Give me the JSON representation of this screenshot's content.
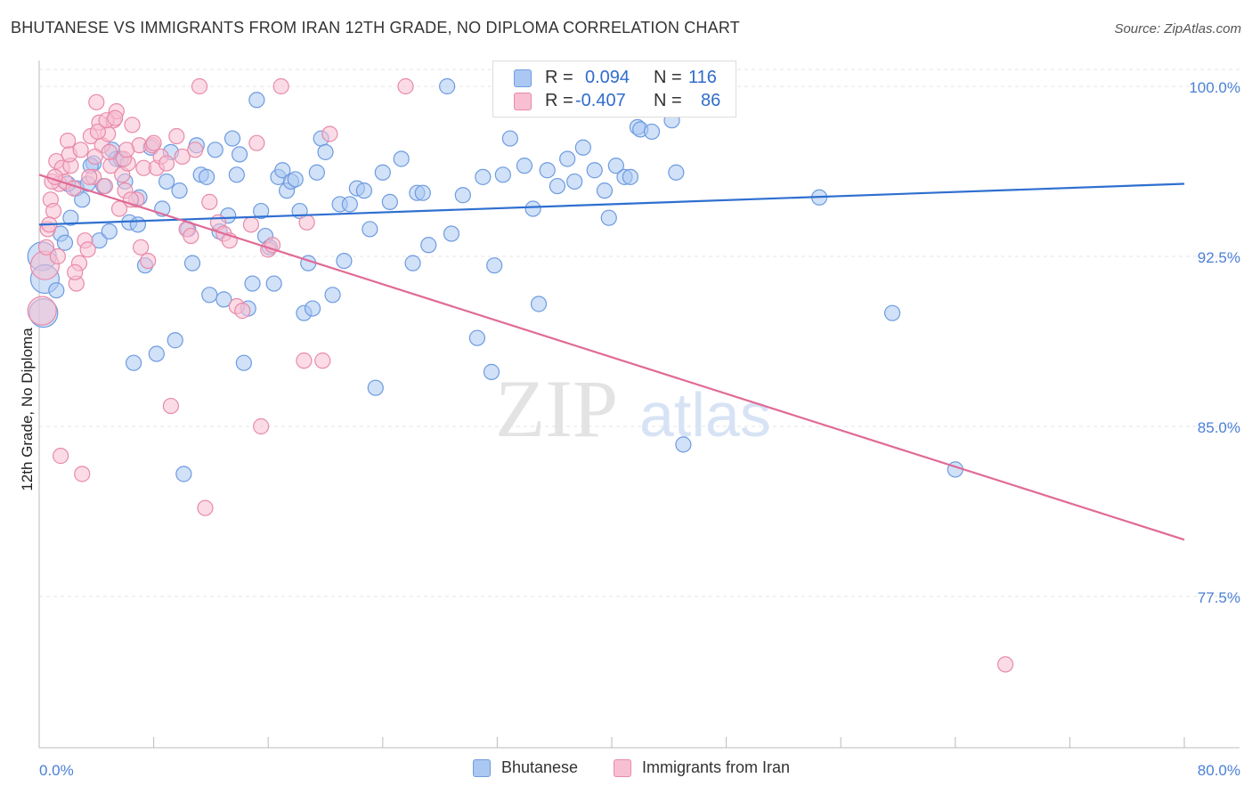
{
  "title": "BHUTANESE VS IMMIGRANTS FROM IRAN 12TH GRADE, NO DIPLOMA CORRELATION CHART",
  "source": "Source: ZipAtlas.com",
  "watermark": {
    "zip": "ZIP",
    "atlas": "atlas"
  },
  "legend": {
    "r_label": "R =",
    "n_label": "N =",
    "rows": [
      {
        "name": "Bhutanese",
        "r": "0.094",
        "n": "116",
        "fill": "#aac8f2",
        "stroke": "#6e9be0",
        "value_color": "#2f6ccc"
      },
      {
        "name": "Immigrants from Iran",
        "r": "-0.407",
        "n": "86",
        "fill": "#f8bfd2",
        "stroke": "#e88aa9",
        "value_color": "#2f6ccc"
      }
    ]
  },
  "chart_data": {
    "type": "scatter",
    "title": "BHUTANESE VS IMMIGRANTS FROM IRAN 12TH GRADE, NO DIPLOMA CORRELATION CHART",
    "xlabel": "",
    "ylabel": "12th Grade, No Diploma",
    "xlim": [
      0,
      80
    ],
    "ylim": [
      70,
      101
    ],
    "y_tick_labels": [
      "100.0%",
      "92.5%",
      "85.0%",
      "77.5%"
    ],
    "y_ticks": [
      100,
      92.5,
      85,
      77.5
    ],
    "x_tick_labels": [
      "0.0%",
      "80.0%"
    ],
    "grid": true,
    "legend_position": "top-center",
    "series": [
      {
        "name": "Bhutanese",
        "color": "#6e9be0",
        "fill": "#aac8f2",
        "trend": {
          "x": [
            0,
            80
          ],
          "y": [
            93.9,
            95.7
          ],
          "color": "#2e6fd0"
        },
        "points": [
          [
            0.2,
            92.5
          ],
          [
            0.4,
            91.5
          ],
          [
            0.3,
            90.0
          ],
          [
            1.2,
            91.0
          ],
          [
            1.5,
            93.5
          ],
          [
            1.8,
            93.1
          ],
          [
            2.2,
            94.2
          ],
          [
            2.6,
            95.5
          ],
          [
            3.0,
            95.0
          ],
          [
            3.4,
            95.7
          ],
          [
            3.8,
            96.6
          ],
          [
            4.2,
            93.2
          ],
          [
            4.5,
            95.6
          ],
          [
            4.9,
            93.6
          ],
          [
            5.1,
            97.2
          ],
          [
            5.4,
            96.8
          ],
          [
            5.7,
            96.8
          ],
          [
            6.0,
            95.8
          ],
          [
            6.3,
            94.0
          ],
          [
            6.6,
            87.8
          ],
          [
            7.0,
            95.1
          ],
          [
            7.4,
            92.1
          ],
          [
            7.8,
            97.3
          ],
          [
            8.2,
            88.2
          ],
          [
            8.6,
            94.6
          ],
          [
            8.9,
            95.8
          ],
          [
            9.2,
            97.1
          ],
          [
            9.5,
            88.8
          ],
          [
            9.8,
            95.4
          ],
          [
            10.1,
            82.9
          ],
          [
            10.4,
            93.7
          ],
          [
            10.7,
            92.2
          ],
          [
            11.0,
            97.4
          ],
          [
            11.3,
            96.1
          ],
          [
            11.7,
            96.0
          ],
          [
            11.9,
            90.8
          ],
          [
            12.3,
            97.2
          ],
          [
            12.6,
            93.6
          ],
          [
            12.9,
            90.6
          ],
          [
            13.2,
            94.3
          ],
          [
            13.5,
            97.7
          ],
          [
            13.8,
            96.1
          ],
          [
            14.0,
            97.0
          ],
          [
            14.3,
            87.8
          ],
          [
            14.6,
            90.2
          ],
          [
            14.9,
            91.3
          ],
          [
            15.2,
            99.4
          ],
          [
            15.5,
            94.5
          ],
          [
            15.8,
            93.4
          ],
          [
            16.1,
            92.9
          ],
          [
            16.4,
            91.3
          ],
          [
            16.7,
            96.0
          ],
          [
            17.0,
            96.3
          ],
          [
            17.3,
            95.4
          ],
          [
            17.6,
            95.8
          ],
          [
            17.9,
            95.9
          ],
          [
            18.2,
            94.5
          ],
          [
            18.5,
            90.0
          ],
          [
            18.8,
            92.2
          ],
          [
            19.1,
            90.2
          ],
          [
            19.4,
            96.2
          ],
          [
            19.7,
            97.7
          ],
          [
            20.0,
            97.1
          ],
          [
            20.5,
            90.8
          ],
          [
            21.0,
            94.8
          ],
          [
            21.3,
            92.3
          ],
          [
            21.7,
            94.8
          ],
          [
            22.2,
            95.5
          ],
          [
            22.7,
            95.4
          ],
          [
            23.1,
            93.7
          ],
          [
            23.5,
            86.7
          ],
          [
            24.0,
            96.2
          ],
          [
            24.5,
            94.9
          ],
          [
            25.3,
            96.8
          ],
          [
            26.1,
            92.2
          ],
          [
            26.4,
            95.3
          ],
          [
            26.8,
            95.3
          ],
          [
            27.2,
            93.0
          ],
          [
            28.5,
            100.0
          ],
          [
            28.8,
            93.5
          ],
          [
            29.6,
            95.2
          ],
          [
            30.6,
            88.9
          ],
          [
            31.0,
            96.0
          ],
          [
            31.6,
            87.4
          ],
          [
            31.8,
            92.1
          ],
          [
            32.4,
            96.1
          ],
          [
            32.9,
            97.7
          ],
          [
            33.9,
            96.5
          ],
          [
            34.5,
            94.6
          ],
          [
            34.9,
            90.4
          ],
          [
            35.5,
            96.3
          ],
          [
            36.2,
            95.6
          ],
          [
            36.9,
            96.8
          ],
          [
            37.4,
            95.8
          ],
          [
            38.0,
            97.3
          ],
          [
            38.8,
            96.3
          ],
          [
            39.5,
            95.4
          ],
          [
            39.8,
            94.2
          ],
          [
            40.3,
            96.5
          ],
          [
            40.9,
            96.0
          ],
          [
            41.3,
            96.0
          ],
          [
            41.8,
            98.2
          ],
          [
            42.0,
            98.1
          ],
          [
            42.3,
            100.0
          ],
          [
            42.8,
            98.0
          ],
          [
            43.3,
            99.0
          ],
          [
            44.0,
            99.2
          ],
          [
            44.5,
            96.2
          ],
          [
            45.0,
            84.2
          ],
          [
            54.5,
            95.1
          ],
          [
            59.6,
            90.0
          ],
          [
            64.0,
            83.1
          ],
          [
            44.2,
            98.5
          ],
          [
            2.0,
            95.7
          ],
          [
            3.6,
            96.5
          ],
          [
            6.9,
            93.9
          ]
        ]
      },
      {
        "name": "Immigrants from Iran",
        "color": "#e88aa9",
        "fill": "#f8bfd2",
        "trend": {
          "x": [
            0,
            80
          ],
          "y": [
            96.1,
            80.0
          ],
          "color": "#e06a96"
        },
        "points": [
          [
            0.2,
            90.1
          ],
          [
            0.4,
            92.1
          ],
          [
            0.6,
            93.7
          ],
          [
            0.8,
            95.0
          ],
          [
            1.0,
            94.5
          ],
          [
            1.2,
            96.7
          ],
          [
            1.4,
            95.7
          ],
          [
            1.6,
            96.4
          ],
          [
            1.8,
            95.8
          ],
          [
            2.0,
            97.6
          ],
          [
            2.2,
            96.5
          ],
          [
            2.4,
            95.5
          ],
          [
            2.6,
            91.3
          ],
          [
            2.8,
            92.2
          ],
          [
            3.0,
            82.9
          ],
          [
            3.2,
            93.2
          ],
          [
            3.4,
            92.8
          ],
          [
            3.6,
            97.8
          ],
          [
            3.8,
            96.0
          ],
          [
            4.0,
            99.3
          ],
          [
            4.2,
            98.4
          ],
          [
            4.4,
            97.4
          ],
          [
            4.6,
            95.6
          ],
          [
            4.8,
            97.9
          ],
          [
            5.0,
            96.5
          ],
          [
            5.2,
            98.5
          ],
          [
            5.4,
            98.9
          ],
          [
            5.6,
            94.6
          ],
          [
            5.8,
            96.1
          ],
          [
            6.0,
            95.4
          ],
          [
            6.2,
            96.6
          ],
          [
            6.5,
            98.3
          ],
          [
            6.8,
            95.0
          ],
          [
            7.0,
            97.4
          ],
          [
            7.3,
            96.4
          ],
          [
            7.6,
            92.3
          ],
          [
            7.9,
            97.4
          ],
          [
            8.2,
            96.4
          ],
          [
            8.5,
            96.9
          ],
          [
            8.9,
            96.6
          ],
          [
            9.2,
            85.9
          ],
          [
            9.6,
            97.8
          ],
          [
            10.0,
            96.9
          ],
          [
            10.3,
            93.7
          ],
          [
            10.6,
            93.4
          ],
          [
            10.9,
            97.2
          ],
          [
            11.2,
            100.0
          ],
          [
            11.6,
            81.4
          ],
          [
            11.9,
            94.9
          ],
          [
            12.5,
            94.0
          ],
          [
            12.9,
            93.5
          ],
          [
            13.3,
            93.2
          ],
          [
            13.8,
            90.3
          ],
          [
            14.2,
            90.1
          ],
          [
            14.8,
            93.9
          ],
          [
            15.2,
            97.5
          ],
          [
            15.5,
            85.0
          ],
          [
            16.0,
            92.8
          ],
          [
            16.3,
            93.0
          ],
          [
            16.9,
            100.0
          ],
          [
            18.5,
            87.9
          ],
          [
            18.7,
            94.0
          ],
          [
            19.8,
            87.9
          ],
          [
            20.3,
            97.9
          ],
          [
            25.6,
            100.0
          ],
          [
            67.5,
            74.5
          ],
          [
            1.5,
            83.7
          ],
          [
            0.9,
            95.8
          ],
          [
            1.1,
            96.0
          ],
          [
            2.1,
            97.0
          ],
          [
            2.9,
            97.2
          ],
          [
            3.5,
            96.0
          ],
          [
            4.1,
            98.0
          ],
          [
            4.7,
            98.5
          ],
          [
            5.3,
            98.6
          ],
          [
            5.9,
            96.8
          ],
          [
            6.4,
            95.0
          ],
          [
            7.1,
            92.9
          ],
          [
            2.5,
            91.8
          ],
          [
            0.7,
            93.9
          ],
          [
            0.5,
            92.9
          ],
          [
            1.3,
            92.5
          ],
          [
            3.9,
            96.9
          ],
          [
            4.9,
            97.1
          ],
          [
            6.1,
            97.2
          ],
          [
            8.0,
            97.5
          ]
        ]
      }
    ]
  }
}
